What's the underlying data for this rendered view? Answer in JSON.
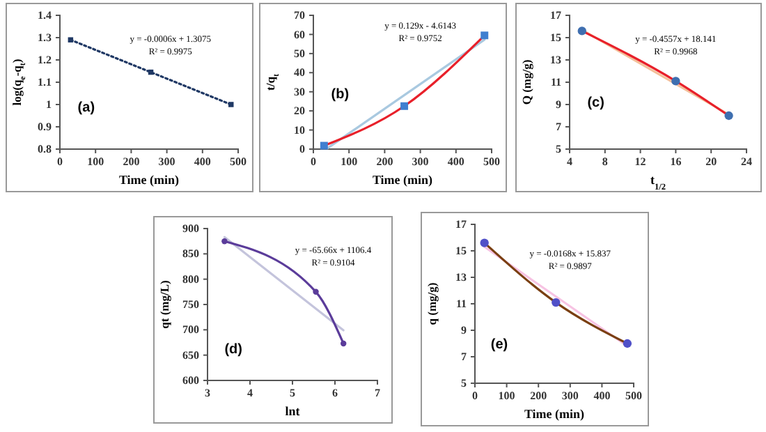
{
  "chart_data": [
    {
      "type": "line",
      "xlabel": "Time (min)",
      "ylabel": "log(q$_{e}$-q$_{t}$)",
      "xlim": [
        0,
        500
      ],
      "xticks": [
        0,
        100,
        200,
        300,
        400,
        500
      ],
      "ylim": [
        0.8,
        1.4
      ],
      "yticks": [
        {
          "value": 0.8,
          "label": "0.8"
        },
        {
          "value": 0.9,
          "label": "0.9"
        },
        {
          "value": 1,
          "label": "1"
        },
        {
          "value": 1.1,
          "label": "1.1"
        },
        {
          "value": 1.2,
          "label": "1.2"
        },
        {
          "value": 1.3,
          "label": "1.3"
        },
        {
          "value": 1.4,
          "label": "1.4"
        }
      ],
      "grid": false,
      "annotations": [
        "y = -0.0006x + 1.3075",
        "R² = 0.9975",
        "(a)"
      ],
      "series": [
        {
          "type": "line",
          "color": "#1f3864",
          "marker": "square",
          "line_style": "dotted",
          "x": [
            30,
            255,
            480
          ],
          "values": [
            1.29,
            1.145,
            1.0
          ]
        }
      ]
    },
    {
      "type": "line",
      "xlabel": "Time (min)",
      "ylabel": "t/q$_{t}$",
      "xlim": [
        0,
        500
      ],
      "xticks": [
        0,
        100,
        200,
        300,
        400,
        500
      ],
      "ylim": [
        0,
        70
      ],
      "yticks": [
        0,
        10,
        20,
        30,
        40,
        50,
        60,
        70
      ],
      "grid": false,
      "annotations": [
        "y = 0.129x - 4.6143",
        "R² = 0.9752",
        "(b)"
      ],
      "series": [
        {
          "type": "line",
          "color": "#a9c9e0",
          "marker": "none",
          "line_style": "solid",
          "x": [
            40,
            480
          ],
          "values": [
            0.5,
            57.3
          ]
        },
        {
          "type": "line",
          "color": "#e8202a",
          "marker": "none",
          "line_style": "solid",
          "x": [
            30,
            255,
            480
          ],
          "values": [
            1.8,
            22.5,
            59.5
          ]
        },
        {
          "type": "scatter",
          "color": "#3f7fd0",
          "marker": "square",
          "x": [
            30,
            255,
            480
          ],
          "values": [
            1.8,
            22.5,
            59.5
          ]
        }
      ]
    },
    {
      "type": "line",
      "xlabel": "t$_{1/2}$",
      "ylabel": "Q (mg/g)",
      "xlim": [
        4,
        24
      ],
      "xticks": [
        4,
        8,
        12,
        16,
        20,
        24
      ],
      "ylim": [
        5,
        17
      ],
      "yticks": [
        5,
        7,
        9,
        11,
        13,
        15,
        17
      ],
      "grid": false,
      "annotations": [
        "y = -0.4557x + 18.141",
        "R² = 0.9968",
        "(c)"
      ],
      "series": [
        {
          "type": "line",
          "color": "#f4c09a",
          "marker": "none",
          "line_style": "solid",
          "x": [
            5.4,
            22
          ],
          "values": [
            15.7,
            8.1
          ]
        },
        {
          "type": "line",
          "color": "#e8202a",
          "marker": "none",
          "line_style": "solid",
          "x": [
            5.4,
            16,
            22
          ],
          "values": [
            15.6,
            11.1,
            8.0
          ]
        },
        {
          "type": "scatter",
          "color": "#3f6fb0",
          "marker": "circle",
          "x": [
            5.4,
            16,
            22
          ],
          "values": [
            15.6,
            11.1,
            8.0
          ]
        }
      ]
    },
    {
      "type": "line",
      "xlabel": "lnt",
      "ylabel": "qt (mg/L)",
      "xlim": [
        3,
        7
      ],
      "xticks": [
        3,
        4,
        5,
        6,
        7
      ],
      "ylim": [
        600,
        900
      ],
      "yticks": [
        600,
        650,
        700,
        750,
        800,
        850,
        900
      ],
      "grid": false,
      "annotations": [
        "y = -65.66x + 1106.4",
        "R² = 0.9104",
        "(d)"
      ],
      "series": [
        {
          "type": "line",
          "color": "#c4c4dc",
          "marker": "none",
          "line_style": "solid",
          "x": [
            3.4,
            6.2
          ],
          "values": [
            883,
            699
          ]
        },
        {
          "type": "line",
          "color": "#5b3c9a",
          "marker": "circle",
          "line_style": "solid",
          "x": [
            3.4,
            5.55,
            6.2
          ],
          "values": [
            875,
            775,
            673
          ]
        }
      ]
    },
    {
      "type": "line",
      "xlabel": "Time (min)",
      "ylabel": "q (mg/g)",
      "xlim": [
        0,
        500
      ],
      "xticks": [
        0,
        100,
        200,
        300,
        400,
        500
      ],
      "ylim": [
        5,
        17
      ],
      "yticks": [
        5,
        7,
        9,
        11,
        13,
        15,
        17
      ],
      "grid": false,
      "annotations": [
        "y = -0.0168x + 15.837",
        "R² = 0.9897",
        "(e)"
      ],
      "series": [
        {
          "type": "line",
          "color": "#f7c3e3",
          "marker": "none",
          "line_style": "solid",
          "x": [
            30,
            480
          ],
          "values": [
            15.3,
            7.8
          ]
        },
        {
          "type": "line",
          "color": "#7a3f12",
          "marker": "none",
          "line_style": "solid",
          "x": [
            30,
            255,
            480
          ],
          "values": [
            15.6,
            11.1,
            8.0
          ]
        },
        {
          "type": "scatter",
          "color": "#5050c8",
          "marker": "circle",
          "x": [
            30,
            255,
            480
          ],
          "values": [
            15.6,
            11.1,
            8.0
          ]
        }
      ]
    }
  ]
}
